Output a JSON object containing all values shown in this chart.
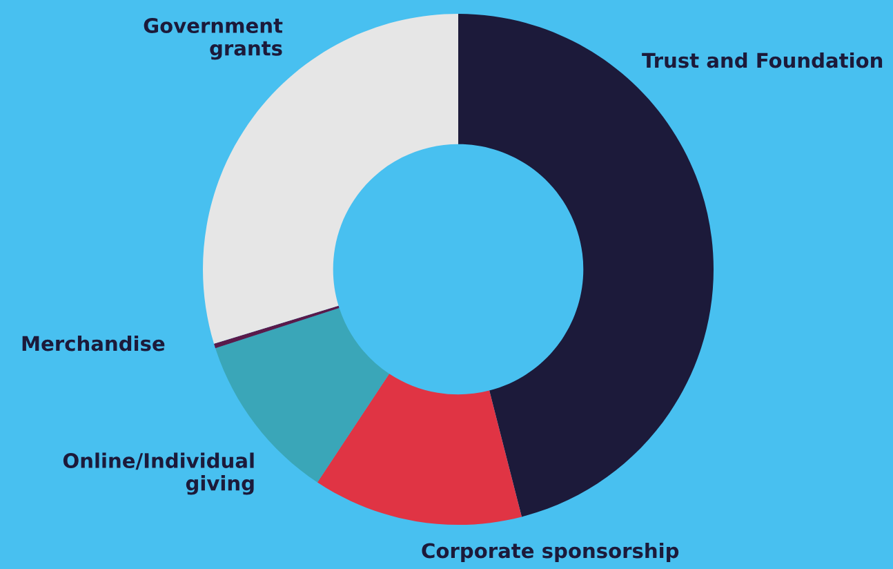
{
  "chart_data": {
    "type": "donut",
    "categories": [
      "Trust and Foundation",
      "Corporate sponsorship",
      "Online/Individual\ngiving",
      "Merchandise",
      "Government\ngrants"
    ],
    "values": [
      46,
      13.3,
      10.7,
      0.3,
      29.7
    ],
    "colors": [
      "#1c1a3a",
      "#e03444",
      "#3aa6b8",
      "#5a1a4a",
      "#e6e6e6"
    ],
    "legend": false
  }
}
